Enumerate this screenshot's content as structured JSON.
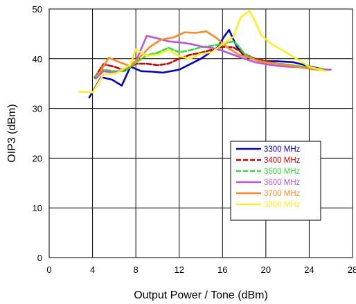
{
  "chart_data": {
    "type": "line",
    "xlabel": "Output Power / Tone (dBm)",
    "ylabel": "OIP3 (dBm)",
    "xlim": [
      0,
      28
    ],
    "ylim": [
      0,
      50
    ],
    "xticks": [
      0,
      4,
      8,
      12,
      16,
      20,
      24,
      28
    ],
    "yticks": [
      0,
      10,
      20,
      30,
      40,
      50
    ],
    "x_tick_labels": [
      "0",
      "4",
      "8",
      "12",
      "16",
      "20",
      "24",
      "28"
    ],
    "y_tick_labels": [
      "0",
      "10",
      "20",
      "30",
      "40",
      "50"
    ],
    "grid": true,
    "legend_position": "lower-right",
    "series": [
      {
        "name": "3300 MHz",
        "color": "#0000cc",
        "dashed": false,
        "points": [
          [
            3.7,
            32.2
          ],
          [
            4.8,
            36.3
          ],
          [
            5.8,
            35.8
          ],
          [
            6.7,
            34.6
          ],
          [
            7.5,
            38.4
          ],
          [
            8.5,
            37.5
          ],
          [
            9.5,
            37.4
          ],
          [
            10.5,
            37.2
          ],
          [
            12,
            37.8
          ],
          [
            14,
            40
          ],
          [
            15.5,
            42.2
          ],
          [
            16.1,
            44.3
          ],
          [
            16.6,
            45.8
          ],
          [
            17.3,
            42.5
          ],
          [
            18,
            40.5
          ],
          [
            19.5,
            39.5
          ],
          [
            21,
            39.5
          ],
          [
            22.5,
            39.3
          ],
          [
            24,
            38.5
          ],
          [
            25,
            38
          ]
        ]
      },
      {
        "name": "3400 MHz",
        "color": "#cc0000",
        "dashed": true,
        "points": [
          [
            4.2,
            36.2
          ],
          [
            5,
            38.9
          ],
          [
            6,
            38.4
          ],
          [
            7,
            37.6
          ],
          [
            8,
            39
          ],
          [
            9,
            39
          ],
          [
            10,
            38.7
          ],
          [
            11,
            39
          ],
          [
            12,
            40
          ],
          [
            13,
            40.8
          ],
          [
            14,
            41.2
          ],
          [
            15,
            41.8
          ],
          [
            16,
            42.4
          ],
          [
            17,
            42.3
          ],
          [
            18,
            41
          ],
          [
            19,
            40
          ],
          [
            20,
            39.5
          ],
          [
            21,
            39
          ],
          [
            22,
            38.8
          ],
          [
            23,
            38.4
          ],
          [
            24,
            38.2
          ],
          [
            25.5,
            37.8
          ]
        ]
      },
      {
        "name": "3500 MHz",
        "color": "#33dd33",
        "dashed": true,
        "points": [
          [
            4.2,
            36.4
          ],
          [
            5,
            37.8
          ],
          [
            6,
            37.5
          ],
          [
            7,
            37.5
          ],
          [
            8,
            39.2
          ],
          [
            9,
            40.7
          ],
          [
            10,
            41.2
          ],
          [
            11,
            42.2
          ],
          [
            12,
            41.3
          ],
          [
            13,
            41.7
          ],
          [
            14,
            42.3
          ],
          [
            15,
            42.6
          ],
          [
            16,
            43
          ],
          [
            17,
            43.5
          ],
          [
            17.5,
            42.5
          ],
          [
            18,
            41
          ],
          [
            19,
            39.8
          ],
          [
            20,
            39.3
          ],
          [
            22,
            38.8
          ],
          [
            24,
            38.2
          ],
          [
            25.5,
            37.9
          ]
        ]
      },
      {
        "name": "3600 MHz",
        "color": "#bb55dd",
        "dashed": false,
        "points": [
          [
            4.3,
            36
          ],
          [
            5,
            37.5
          ],
          [
            6,
            37.2
          ],
          [
            7,
            38
          ],
          [
            8,
            39.5
          ],
          [
            8.5,
            42
          ],
          [
            9,
            44.6
          ],
          [
            10,
            44.1
          ],
          [
            11,
            43.5
          ],
          [
            12,
            43.3
          ],
          [
            13,
            43
          ],
          [
            14,
            42.5
          ],
          [
            15,
            42.2
          ],
          [
            16,
            41.6
          ],
          [
            17,
            40.8
          ],
          [
            18,
            40
          ],
          [
            19,
            39.3
          ],
          [
            20,
            38.9
          ],
          [
            21,
            38.6
          ],
          [
            22,
            38.4
          ],
          [
            23,
            38.3
          ],
          [
            24,
            38
          ],
          [
            25,
            37.8
          ],
          [
            26,
            37.8
          ]
        ]
      },
      {
        "name": "3700 MHz",
        "color": "#ff8822",
        "dashed": false,
        "points": [
          [
            4.5,
            36.7
          ],
          [
            5.5,
            40.2
          ],
          [
            6.5,
            39.3
          ],
          [
            7.5,
            38.5
          ],
          [
            8.5,
            40.6
          ],
          [
            9.3,
            42.4
          ],
          [
            10.3,
            43.8
          ],
          [
            11.5,
            44.3
          ],
          [
            12.5,
            45.3
          ],
          [
            13.5,
            45.2
          ],
          [
            14.5,
            45.5
          ],
          [
            15.5,
            44.1
          ],
          [
            16.5,
            42.2
          ],
          [
            17.5,
            40.8
          ],
          [
            18.5,
            40.2
          ],
          [
            19.5,
            39.4
          ],
          [
            21,
            39
          ],
          [
            22.5,
            38.5
          ],
          [
            24,
            38
          ],
          [
            25.5,
            37.6
          ]
        ]
      },
      {
        "name": "3800 MHz",
        "color": "#ffee22",
        "dashed": false,
        "points": [
          [
            2.8,
            33.4
          ],
          [
            4,
            33.2
          ],
          [
            5,
            36.8
          ],
          [
            6.2,
            37.1
          ],
          [
            7.5,
            38.8
          ],
          [
            8,
            41.9
          ],
          [
            9,
            40.6
          ],
          [
            10,
            40.8
          ],
          [
            11,
            41.7
          ],
          [
            12,
            40.5
          ],
          [
            13,
            40
          ],
          [
            14,
            41
          ],
          [
            15,
            41.3
          ],
          [
            16,
            42.9
          ],
          [
            17,
            44.4
          ],
          [
            17.7,
            48.4
          ],
          [
            18.5,
            49.6
          ],
          [
            19,
            47.5
          ],
          [
            19.6,
            44.7
          ],
          [
            20.5,
            43
          ],
          [
            22,
            41.1
          ],
          [
            24,
            38.4
          ],
          [
            25.5,
            37.5
          ]
        ]
      }
    ]
  }
}
